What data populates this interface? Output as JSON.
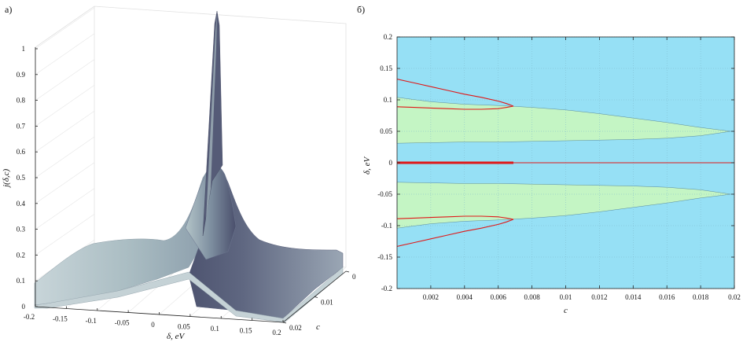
{
  "chart_data": [
    {
      "panel_label": "а)",
      "type": "surface3d",
      "title": "",
      "xlabel": "δ, eV",
      "ylabel": "c",
      "zlabel": "j(δ,c)",
      "x_ticks": [
        "-0.2",
        "-0.15",
        "-0.1",
        "-0.05",
        "0",
        "0.05",
        "0.1",
        "0.15",
        "0.2"
      ],
      "y_ticks": [
        "0",
        "0.01",
        "0.02"
      ],
      "z_ticks": [
        "0",
        "0.1",
        "0.2",
        "0.3",
        "0.4",
        "0.5",
        "0.6",
        "0.7",
        "0.8",
        "0.9",
        "1"
      ],
      "xlim": [
        -0.2,
        0.2
      ],
      "ylim": [
        0,
        0.02
      ],
      "zlim": [
        0,
        1
      ],
      "grid": true,
      "colors": {
        "surface_light": "#aebfc4",
        "surface_dark": "#4f5572",
        "grid": "#dcdcdc"
      },
      "features": {
        "central_peak": {
          "delta": 0,
          "height": 0.56
        },
        "sharp_spike": {
          "delta": 0.01,
          "c": 0.0,
          "height": 1.0
        },
        "side_plateau": {
          "height": 0.15
        }
      }
    },
    {
      "panel_label": "б)",
      "type": "region_map",
      "title": "",
      "xlabel": "c",
      "ylabel": "δ, eV",
      "x_ticks": [
        "0.002",
        "0.004",
        "0.006",
        "0.008",
        "0.01",
        "0.012",
        "0.014",
        "0.016",
        "0.018",
        "0.02"
      ],
      "y_ticks": [
        "0.2",
        "0.15",
        "0.1",
        "0.05",
        "0",
        "-0.05",
        "-0.1",
        "-0.15",
        "-0.2"
      ],
      "xlim": [
        0,
        0.02
      ],
      "ylim": [
        -0.2,
        0.2
      ],
      "grid": true,
      "colors": {
        "background": "#96e0f5",
        "region": "#c4f5c4",
        "curve": "#e01818"
      },
      "regions": [
        {
          "c": [
            0,
            0.002,
            0.004,
            0.006,
            0.008,
            0.01,
            0.012,
            0.014,
            0.016,
            0.018,
            0.0198
          ],
          "upper": [
            0.104,
            0.097,
            0.093,
            0.091,
            0.088,
            0.084,
            0.078,
            0.071,
            0.064,
            0.056,
            0.05
          ],
          "lower": [
            0.031,
            0.032,
            0.033,
            0.033,
            0.034,
            0.035,
            0.036,
            0.037,
            0.039,
            0.043,
            0.05
          ]
        },
        {
          "c": [
            0,
            0.002,
            0.004,
            0.006,
            0.008,
            0.01,
            0.012,
            0.014,
            0.016,
            0.018,
            0.0198
          ],
          "upper": [
            -0.031,
            -0.032,
            -0.033,
            -0.033,
            -0.034,
            -0.035,
            -0.036,
            -0.037,
            -0.039,
            -0.043,
            -0.05
          ],
          "lower": [
            -0.104,
            -0.097,
            -0.093,
            -0.091,
            -0.088,
            -0.084,
            -0.078,
            -0.071,
            -0.064,
            -0.056,
            -0.05
          ]
        }
      ],
      "curves": [
        {
          "c": [
            0,
            0.001,
            0.002,
            0.003,
            0.004,
            0.005,
            0.006,
            0.0065,
            0.0069
          ],
          "delta": [
            0.133,
            0.127,
            0.121,
            0.115,
            0.109,
            0.104,
            0.098,
            0.094,
            0.09
          ]
        },
        {
          "c": [
            0.0069,
            0.0065,
            0.006,
            0.005,
            0.004,
            0.003,
            0.002,
            0.001,
            0.0
          ],
          "delta": [
            0.09,
            0.088,
            0.086,
            0.085,
            0.085,
            0.086,
            0.087,
            0.088,
            0.089
          ]
        },
        {
          "c": [
            0,
            0.001,
            0.002,
            0.003,
            0.004,
            0.005,
            0.006,
            0.0065,
            0.0069
          ],
          "delta": [
            -0.133,
            -0.127,
            -0.121,
            -0.115,
            -0.109,
            -0.104,
            -0.098,
            -0.094,
            -0.09
          ]
        },
        {
          "c": [
            0.0069,
            0.0065,
            0.006,
            0.005,
            0.004,
            0.003,
            0.002,
            0.001,
            0.0
          ],
          "delta": [
            -0.09,
            -0.088,
            -0.086,
            -0.085,
            -0.085,
            -0.086,
            -0.087,
            -0.088,
            -0.089
          ]
        },
        {
          "c": [
            0,
            0.0069
          ],
          "delta": [
            0,
            0
          ],
          "bold": true
        },
        {
          "c": [
            0.0069,
            0.02
          ],
          "delta": [
            0,
            0
          ]
        }
      ]
    }
  ]
}
